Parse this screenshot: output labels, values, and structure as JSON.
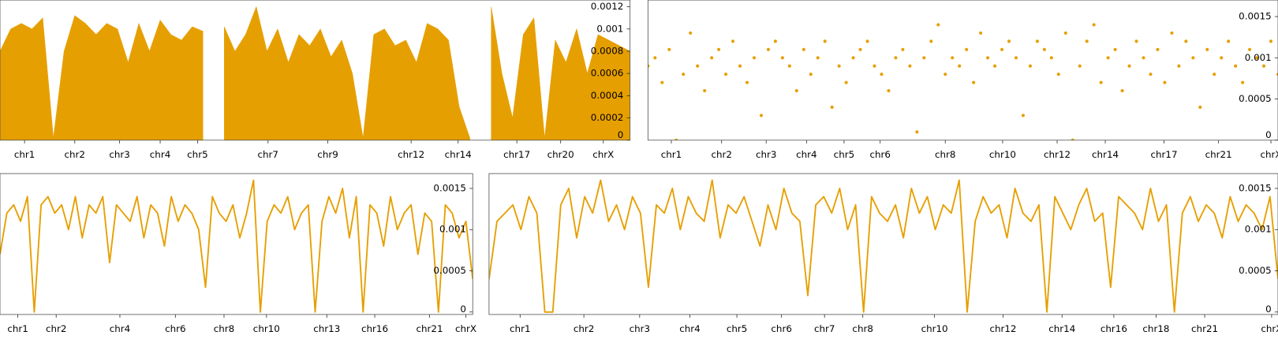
{
  "chart_data": [
    {
      "type": "area",
      "color": "#e69f00",
      "x": [
        0,
        1,
        2,
        3,
        4,
        5,
        6,
        7,
        8,
        9,
        10,
        11,
        12,
        13,
        14,
        15,
        16,
        17,
        18,
        19,
        20,
        21,
        22,
        23,
        24,
        25,
        26,
        27,
        28,
        29,
        30,
        31,
        32,
        33,
        34,
        35,
        36,
        37,
        38,
        39,
        40,
        41,
        42,
        43,
        44,
        45,
        46,
        47,
        48,
        49,
        50,
        51,
        52,
        53,
        54,
        55,
        56,
        57,
        58,
        59
      ],
      "values": [
        0.0008,
        0.001,
        0.00105,
        0.001,
        0.0011,
        2e-05,
        0.0008,
        0.00112,
        0.00105,
        0.00095,
        0.00105,
        0.001,
        0.0007,
        0.00105,
        0.0008,
        0.00108,
        0.00095,
        0.0009,
        0.00102,
        0.00098,
        null,
        0.00102,
        0.0008,
        0.00095,
        0.0012,
        0.0008,
        0.001,
        0.0007,
        0.00095,
        0.00085,
        0.001,
        0.00075,
        0.0009,
        0.0006,
        2e-05,
        0.00095,
        0.001,
        0.00085,
        0.0009,
        0.0007,
        0.00105,
        0.001,
        0.0009,
        0.0003,
        2e-05,
        null,
        0.0012,
        0.0006,
        0.0002,
        0.00095,
        0.0011,
        2e-05,
        0.0009,
        0.0007,
        0.001,
        0.0006,
        0.00095,
        0.0009,
        0.00085,
        0.0008
      ],
      "xlim": [
        0,
        59
      ],
      "ylim": [
        0,
        0.00126
      ],
      "xticks": [
        {
          "value": 2.3,
          "label": "chr1"
        },
        {
          "value": 7.0,
          "label": "chr2"
        },
        {
          "value": 11.2,
          "label": "chr3"
        },
        {
          "value": 15.0,
          "label": "chr4"
        },
        {
          "value": 18.5,
          "label": "chr5"
        },
        {
          "value": 25.1,
          "label": "chr7"
        },
        {
          "value": 30.7,
          "label": "chr9"
        },
        {
          "value": 38.5,
          "label": "chr12"
        },
        {
          "value": 42.9,
          "label": "chr14"
        },
        {
          "value": 48.4,
          "label": "chr17"
        },
        {
          "value": 52.5,
          "label": "chr20"
        },
        {
          "value": 56.5,
          "label": "chrX"
        }
      ],
      "yticks": [
        0,
        0.0002,
        0.0004,
        0.0006,
        0.0008,
        0.001,
        0.0012
      ]
    },
    {
      "type": "scatter",
      "color": "#e69f00",
      "x": [
        0,
        1,
        2,
        3,
        4,
        5,
        6,
        7,
        8,
        9,
        10,
        11,
        12,
        13,
        14,
        15,
        16,
        17,
        18,
        19,
        20,
        21,
        22,
        23,
        24,
        25,
        26,
        27,
        28,
        29,
        30,
        31,
        32,
        33,
        34,
        35,
        36,
        37,
        38,
        39,
        40,
        41,
        42,
        43,
        44,
        45,
        46,
        47,
        48,
        49,
        50,
        51,
        52,
        53,
        54,
        55,
        56,
        57,
        58,
        59,
        60,
        61,
        62,
        63,
        64,
        65,
        66,
        67,
        68,
        69,
        70,
        71,
        72,
        73,
        74,
        75,
        76,
        77,
        78,
        79,
        80,
        81,
        82,
        83,
        84,
        85,
        86,
        87,
        88,
        89
      ],
      "values": [
        0.0009,
        0.001,
        0.0007,
        0.0011,
        0,
        0.0008,
        0.0013,
        0.0009,
        0.0006,
        0.001,
        0.0011,
        0.0008,
        0.0012,
        0.0009,
        0.0007,
        0.001,
        0.0003,
        0.0011,
        0.0012,
        0.001,
        0.0009,
        0.0006,
        0.0011,
        0.0008,
        0.001,
        0.0012,
        0.0004,
        0.0009,
        0.0007,
        0.001,
        0.0011,
        0.0012,
        0.0009,
        0.0008,
        0.0006,
        0.001,
        0.0011,
        0.0009,
        0.0001,
        0.001,
        0.0012,
        0.0014,
        0.0008,
        0.001,
        0.0009,
        0.0011,
        0.0007,
        0.0013,
        0.001,
        0.0009,
        0.0011,
        0.0012,
        0.001,
        0.0003,
        0.0009,
        0.0012,
        0.0011,
        0.001,
        0.0008,
        0.0013,
        0,
        0.0009,
        0.0012,
        0.0014,
        0.0007,
        0.001,
        0.0011,
        0.0006,
        0.0009,
        0.0012,
        0.001,
        0.0008,
        0.0011,
        0.0007,
        0.0013,
        0.0009,
        0.0012,
        0.001,
        0.0004,
        0.0011,
        0.0008,
        0.001,
        0.0012,
        0.0009,
        0.0007,
        0.0011,
        0.001,
        0.0009,
        0.0012,
        0.0008
      ],
      "xlim": [
        0,
        89
      ],
      "ylim": [
        0,
        0.0017
      ],
      "xticks": [
        {
          "value": 3.3,
          "label": "chr1"
        },
        {
          "value": 10.4,
          "label": "chr2"
        },
        {
          "value": 16.7,
          "label": "chr3"
        },
        {
          "value": 22.4,
          "label": "chr4"
        },
        {
          "value": 27.7,
          "label": "chr5"
        },
        {
          "value": 32.8,
          "label": "chr6"
        },
        {
          "value": 42.0,
          "label": "chr8"
        },
        {
          "value": 50.1,
          "label": "chr10"
        },
        {
          "value": 57.8,
          "label": "chr12"
        },
        {
          "value": 64.6,
          "label": "chr14"
        },
        {
          "value": 72.9,
          "label": "chr17"
        },
        {
          "value": 80.6,
          "label": "chr21"
        },
        {
          "value": 88.0,
          "label": "chrX"
        }
      ],
      "yticks": [
        0,
        0.0005,
        0.001,
        0.0015
      ]
    },
    {
      "type": "line",
      "color": "#e69f00",
      "x": [
        0,
        1,
        2,
        3,
        4,
        5,
        6,
        7,
        8,
        9,
        10,
        11,
        12,
        13,
        14,
        15,
        16,
        17,
        18,
        19,
        20,
        21,
        22,
        23,
        24,
        25,
        26,
        27,
        28,
        29,
        30,
        31,
        32,
        33,
        34,
        35,
        36,
        37,
        38,
        39,
        40,
        41,
        42,
        43,
        44,
        45,
        46,
        47,
        48,
        49,
        50,
        51,
        52,
        53,
        54,
        55,
        56,
        57,
        58,
        59,
        60,
        61,
        62,
        63,
        64,
        65,
        66,
        67,
        68,
        69
      ],
      "values": [
        0.0007,
        0.0012,
        0.0013,
        0.0011,
        0.0014,
        0,
        0.0013,
        0.0014,
        0.0012,
        0.0013,
        0.001,
        0.0014,
        0.0009,
        0.0013,
        0.0012,
        0.0014,
        0.0006,
        0.0013,
        0.0012,
        0.0011,
        0.0014,
        0.0009,
        0.0013,
        0.0012,
        0.0008,
        0.0014,
        0.0011,
        0.0013,
        0.0012,
        0.001,
        0.0003,
        0.0014,
        0.0012,
        0.0011,
        0.0013,
        0.0009,
        0.0012,
        0.0016,
        0,
        0.0011,
        0.0013,
        0.0012,
        0.0014,
        0.001,
        0.0012,
        0.0013,
        0,
        0.0011,
        0.0014,
        0.0012,
        0.0015,
        0.0009,
        0.0014,
        0,
        0.0013,
        0.0012,
        0.0008,
        0.0014,
        0.001,
        0.0012,
        0.0013,
        0.0007,
        0.0012,
        0.0011,
        0,
        0.0013,
        0.0012,
        0.0009,
        0.0011,
        0.0004
      ],
      "xlim": [
        0,
        69
      ],
      "ylim": [
        -3e-05,
        0.00168
      ],
      "xticks": [
        {
          "value": 2.6,
          "label": "chr1"
        },
        {
          "value": 8.2,
          "label": "chr2"
        },
        {
          "value": 17.5,
          "label": "chr4"
        },
        {
          "value": 25.6,
          "label": "chr6"
        },
        {
          "value": 32.7,
          "label": "chr8"
        },
        {
          "value": 38.9,
          "label": "chr10"
        },
        {
          "value": 47.7,
          "label": "chr13"
        },
        {
          "value": 54.7,
          "label": "chr16"
        },
        {
          "value": 62.7,
          "label": "chr21"
        },
        {
          "value": 68.0,
          "label": "chrX"
        }
      ],
      "yticks": [
        0,
        0.0005,
        0.001,
        0.0015
      ]
    },
    {
      "type": "line",
      "color": "#e69f00",
      "x": [
        0,
        1,
        2,
        3,
        4,
        5,
        6,
        7,
        8,
        9,
        10,
        11,
        12,
        13,
        14,
        15,
        16,
        17,
        18,
        19,
        20,
        21,
        22,
        23,
        24,
        25,
        26,
        27,
        28,
        29,
        30,
        31,
        32,
        33,
        34,
        35,
        36,
        37,
        38,
        39,
        40,
        41,
        42,
        43,
        44,
        45,
        46,
        47,
        48,
        49,
        50,
        51,
        52,
        53,
        54,
        55,
        56,
        57,
        58,
        59,
        60,
        61,
        62,
        63,
        64,
        65,
        66,
        67,
        68,
        69,
        70,
        71,
        72,
        73,
        74,
        75,
        76,
        77,
        78,
        79,
        80,
        81,
        82,
        83,
        84,
        85,
        86,
        87,
        88,
        89,
        90,
        91,
        92,
        93,
        94,
        95,
        96,
        97,
        98,
        99
      ],
      "values": [
        0.0004,
        0.0011,
        0.0012,
        0.0013,
        0.001,
        0.0014,
        0.0012,
        0,
        0,
        0.0013,
        0.0015,
        0.0009,
        0.0014,
        0.0012,
        0.0016,
        0.0011,
        0.0013,
        0.001,
        0.0014,
        0.0012,
        0.0003,
        0.0013,
        0.0012,
        0.0015,
        0.001,
        0.0014,
        0.0012,
        0.0011,
        0.0016,
        0.0009,
        0.0013,
        0.0012,
        0.0014,
        0.0011,
        0.0008,
        0.0013,
        0.001,
        0.0015,
        0.0012,
        0.0011,
        0.0002,
        0.0013,
        0.0014,
        0.0012,
        0.0015,
        0.001,
        0.0013,
        0,
        0.0014,
        0.0012,
        0.0011,
        0.0013,
        0.0009,
        0.0015,
        0.0012,
        0.0014,
        0.001,
        0.0013,
        0.0012,
        0.0016,
        0,
        0.0011,
        0.0014,
        0.0012,
        0.0013,
        0.0009,
        0.0015,
        0.0012,
        0.0011,
        0.0013,
        0,
        0.0014,
        0.0012,
        0.001,
        0.0013,
        0.0015,
        0.0011,
        0.0012,
        0.0003,
        0.0014,
        0.0013,
        0.0012,
        0.001,
        0.0015,
        0.0011,
        0.0013,
        0,
        0.0012,
        0.0014,
        0.0011,
        0.0013,
        0.0012,
        0.0009,
        0.0014,
        0.0011,
        0.0013,
        0.0012,
        0.001,
        0.0014,
        0.0004
      ],
      "xlim": [
        0,
        99
      ],
      "ylim": [
        -3e-05,
        0.00168
      ],
      "xticks": [
        {
          "value": 3.9,
          "label": "chr1"
        },
        {
          "value": 11.9,
          "label": "chr2"
        },
        {
          "value": 18.9,
          "label": "chr3"
        },
        {
          "value": 25.2,
          "label": "chr4"
        },
        {
          "value": 31.1,
          "label": "chr5"
        },
        {
          "value": 36.7,
          "label": "chr6"
        },
        {
          "value": 42.1,
          "label": "chr7"
        },
        {
          "value": 46.9,
          "label": "chr8"
        },
        {
          "value": 55.9,
          "label": "chr10"
        },
        {
          "value": 64.5,
          "label": "chr12"
        },
        {
          "value": 71.9,
          "label": "chr14"
        },
        {
          "value": 78.4,
          "label": "chr16"
        },
        {
          "value": 83.7,
          "label": "chr18"
        },
        {
          "value": 89.8,
          "label": "chr21"
        },
        {
          "value": 98.2,
          "label": "chrX"
        }
      ],
      "yticks": [
        0,
        0.0005,
        0.001,
        0.0015
      ]
    }
  ]
}
